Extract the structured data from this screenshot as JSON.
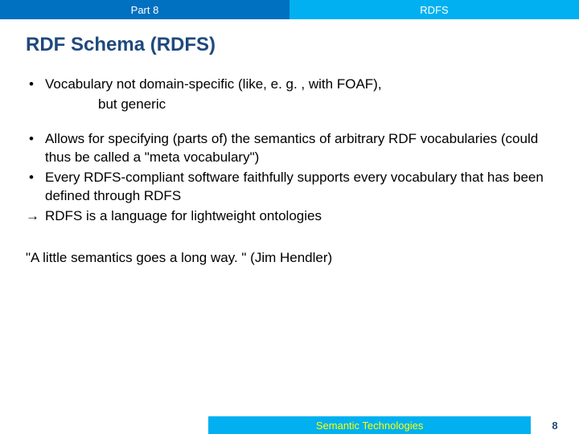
{
  "header": {
    "left_text": "Part 8",
    "right_text": "RDFS",
    "left_bg": "#0070c0",
    "right_bg": "#00b0f0",
    "text_color": "#ffffff"
  },
  "title": {
    "text": "RDF Schema (RDFS)",
    "color": "#1f497d",
    "fontsize": 24
  },
  "body": {
    "fontsize": 17,
    "color": "#000000",
    "bullet1": {
      "line1": "Vocabulary not domain-specific (like, e. g. , with FOAF),",
      "line2": "but generic"
    },
    "bullet2": "Allows for specifying (parts of) the semantics of arbitrary RDF vocabularies (could thus be called a \"meta vocabulary\")",
    "bullet3": "Every RDFS-compliant software faithfully supports every vocabulary that has been defined through RDFS",
    "arrow_line": "RDFS is a language for lightweight ontologies",
    "arrow_glyph": "→",
    "bullet_glyph": "•"
  },
  "quote": {
    "text": "\"A little semantics goes a long way. \" (Jim Hendler)",
    "fontsize": 17
  },
  "footer": {
    "center_text": "Semantic Technologies",
    "page_number": "8",
    "center_bg": "#00b0f0",
    "center_color": "#ffff00",
    "right_color": "#1f497d"
  }
}
